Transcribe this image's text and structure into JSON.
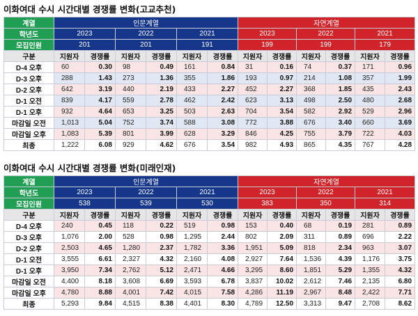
{
  "tables": [
    {
      "title": "이화여대 수시 시간대별 경쟁률 변화(고교추천)",
      "header": {
        "gyeyeol_label": "계열",
        "group_left": "인문계열",
        "group_right": "자연계열",
        "year_label": "학년도",
        "years": [
          "2023",
          "2022",
          "2021",
          "2023",
          "2022",
          "2021"
        ],
        "quota_label": "모집인원",
        "quotas": [
          "201",
          "201",
          "191",
          "199",
          "199",
          "179"
        ],
        "gubun_label": "구분",
        "col_applicants": "지원자",
        "col_ratio": "경쟁률"
      },
      "rows": [
        {
          "label": "D-4 오후",
          "shade": "pink",
          "cells": [
            "60",
            "0.30",
            "98",
            "0.49",
            "161",
            "0.84",
            "31",
            "0.16",
            "74",
            "0.37",
            "171",
            "0.96"
          ]
        },
        {
          "label": "D-3 오후",
          "shade": "blue",
          "cells": [
            "288",
            "1.43",
            "273",
            "1.36",
            "355",
            "1.86",
            "193",
            "0.97",
            "214",
            "1.08",
            "357",
            "1.99"
          ]
        },
        {
          "label": "D-2 오후",
          "shade": "pink",
          "cells": [
            "642",
            "3.19",
            "440",
            "2.19",
            "433",
            "2.27",
            "452",
            "2.27",
            "368",
            "1.85",
            "435",
            "2.43"
          ]
        },
        {
          "label": "D-1 오전",
          "shade": "blue",
          "cells": [
            "839",
            "4.17",
            "559",
            "2.78",
            "462",
            "2.42",
            "623",
            "3.13",
            "498",
            "2.50",
            "480",
            "2.68"
          ]
        },
        {
          "label": "D-1 오후",
          "shade": "pink",
          "cells": [
            "932",
            "4.64",
            "653",
            "3.25",
            "503",
            "2.63",
            "704",
            "3.54",
            "582",
            "2.92",
            "529",
            "2.96"
          ]
        },
        {
          "label": "마감일 오전",
          "shade": "blue",
          "cells": [
            "1,013",
            "5.04",
            "752",
            "3.74",
            "588",
            "3.08",
            "772",
            "3.88",
            "676",
            "3.40",
            "660",
            "3.69"
          ]
        },
        {
          "label": "마감일 오후",
          "shade": "pink",
          "cells": [
            "1,083",
            "5.39",
            "801",
            "3.99",
            "628",
            "3.29",
            "846",
            "4.25",
            "755",
            "3.79",
            "722",
            "4.03"
          ]
        },
        {
          "label": "최종",
          "shade": "plain",
          "cells": [
            "1,222",
            "6.08",
            "929",
            "4.62",
            "676",
            "3.54",
            "982",
            "4.93",
            "865",
            "4.35",
            "767",
            "4.28"
          ]
        }
      ]
    },
    {
      "title": "이화여대 수시 시간대별 경쟁률 변화(미래인재)",
      "header": {
        "gyeyeol_label": "계열",
        "group_left": "인문계열",
        "group_right": "자연계열",
        "year_label": "학년도",
        "years": [
          "2023",
          "2022",
          "2021",
          "2023",
          "2022",
          "2021"
        ],
        "quota_label": "모집인원",
        "quotas": [
          "538",
          "539",
          "530",
          "383",
          "350",
          "314"
        ],
        "gubun_label": "구분",
        "col_applicants": "지원자",
        "col_ratio": "경쟁률"
      },
      "rows": [
        {
          "label": "D-4 오후",
          "shade": "pink",
          "cells": [
            "240",
            "0.45",
            "118",
            "0.22",
            "519",
            "0.98",
            "153",
            "0.40",
            "68",
            "0.19",
            "281",
            "0.89"
          ]
        },
        {
          "label": "D-3 오후",
          "shade": "plain",
          "cells": [
            "1,076",
            "2.00",
            "528",
            "0.98",
            "1,295",
            "2.44",
            "802",
            "2.09",
            "311",
            "0.89",
            "696",
            "2.22"
          ]
        },
        {
          "label": "D-2 오후",
          "shade": "pink",
          "cells": [
            "2,503",
            "4.65",
            "1,280",
            "2.37",
            "1,782",
            "3.36",
            "1,951",
            "5.09",
            "818",
            "2.34",
            "963",
            "3.07"
          ]
        },
        {
          "label": "D-1 오전",
          "shade": "plain",
          "cells": [
            "3,555",
            "6.61",
            "2,327",
            "4.32",
            "2,160",
            "4.08",
            "2,927",
            "7.64",
            "1,536",
            "4.39",
            "1,176",
            "3.75"
          ]
        },
        {
          "label": "D-1 오후",
          "shade": "pink",
          "cells": [
            "3,950",
            "7.34",
            "2,762",
            "5.12",
            "2,471",
            "4.66",
            "3,295",
            "8.60",
            "1,851",
            "5.29",
            "1,355",
            "4.32"
          ]
        },
        {
          "label": "마감일 오전",
          "shade": "plain",
          "cells": [
            "4,400",
            "8.18",
            "3,608",
            "6.69",
            "3,593",
            "6.78",
            "3,837",
            "10.02",
            "2,612",
            "7.46",
            "2,135",
            "6.80"
          ]
        },
        {
          "label": "마감일 오후",
          "shade": "pink",
          "cells": [
            "4,780",
            "8.88",
            "4,001",
            "7.42",
            "4,015",
            "7.58",
            "4,286",
            "11.19",
            "2,967",
            "8.48",
            "2,422",
            "7.71"
          ]
        },
        {
          "label": "최종",
          "shade": "plain",
          "cells": [
            "5,293",
            "9.84",
            "4,515",
            "8.38",
            "4,401",
            "8.30",
            "4,789",
            "12.50",
            "3,313",
            "9.47",
            "2,708",
            "8.62"
          ]
        }
      ]
    }
  ]
}
